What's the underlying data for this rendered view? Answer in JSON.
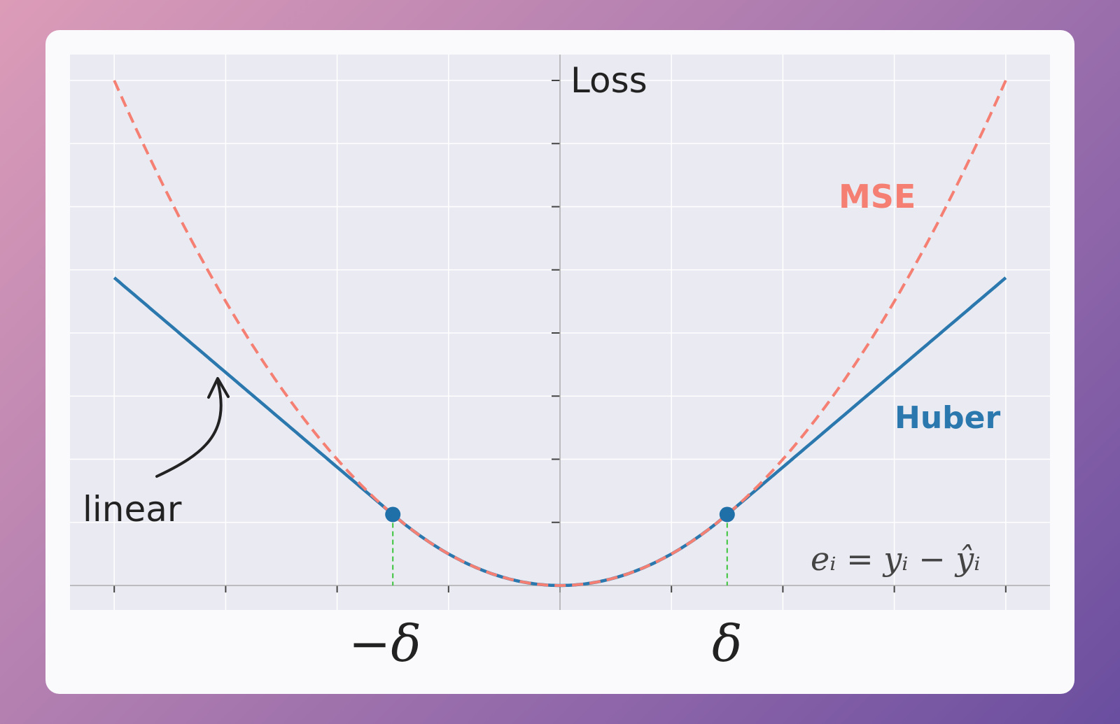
{
  "chart_data": {
    "type": "line",
    "title": "",
    "ylabel": "Loss",
    "xlabel": "e_i = y_i - ŷ_i",
    "formula_label": "eᵢ = yᵢ − ŷᵢ",
    "xlim": [
      -4,
      4
    ],
    "ylim": [
      0,
      8
    ],
    "x_ticks": [
      -4,
      -3,
      -2,
      -1,
      0,
      1,
      2,
      3,
      4
    ],
    "y_ticks": [
      0,
      1,
      2,
      3,
      4,
      5,
      6,
      7,
      8
    ],
    "delta": 1.5,
    "x_tick_labels": [
      {
        "value": -1.5,
        "label": "−δ"
      },
      {
        "value": 1.5,
        "label": "δ"
      }
    ],
    "grid": true,
    "series": [
      {
        "name": "MSE",
        "formula": "0.5*e^2",
        "style": "dashed",
        "color": "#f47f72"
      },
      {
        "name": "Huber",
        "formula": "0.5*e^2 if |e|<=delta else delta*(|e|-delta/2)",
        "style": "solid",
        "color": "#2a78ad"
      }
    ],
    "annotations": [
      {
        "text": "linear",
        "points_to_x": -3
      }
    ],
    "marker_color": "#1f6fa8",
    "delta_line_color": "#3cc43c"
  }
}
